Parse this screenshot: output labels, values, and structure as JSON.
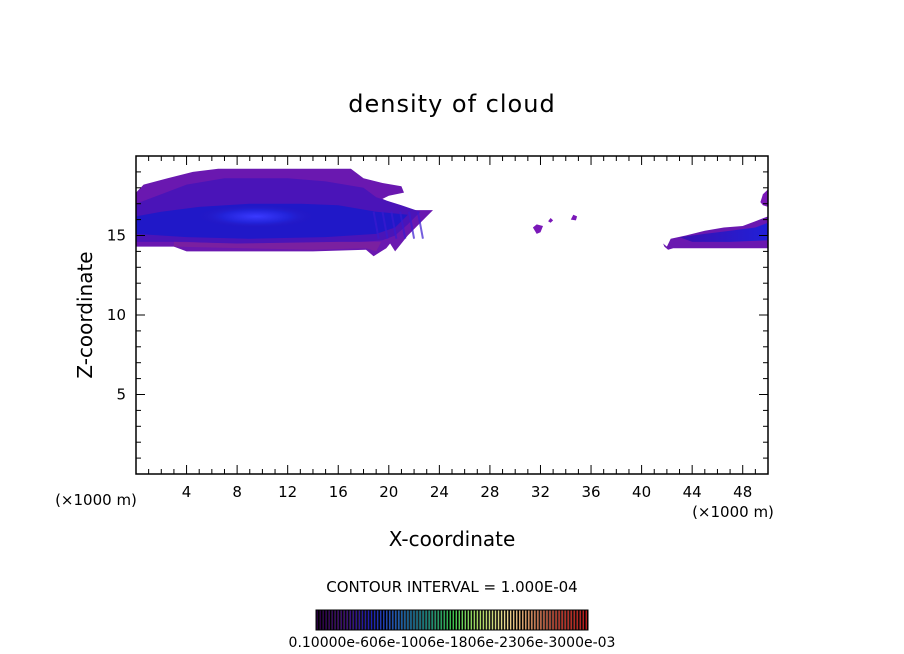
{
  "chart_data": {
    "type": "heatmap",
    "title": "density of cloud",
    "xlabel": "X-coordinate",
    "ylabel": "Z-coordinate",
    "x_unit_label": "(×1000 m)",
    "y_unit_label": "(×1000 m)",
    "xlim": [
      0,
      50
    ],
    "ylim": [
      0,
      20
    ],
    "x_ticks": [
      4,
      8,
      12,
      16,
      20,
      24,
      28,
      32,
      36,
      40,
      44,
      48
    ],
    "y_ticks": [
      5,
      10,
      15
    ],
    "contour_interval_label": "CONTOUR INTERVAL = 1.000E-04",
    "colorbar_labels": "0.10000e-606e-1006e-1806e-2306e-3000e-03",
    "colorbar_range": [
      0.0001,
      0.003
    ],
    "palette": [
      "#2a0040",
      "#3a0a70",
      "#1f1fb0",
      "#2a6fd0",
      "#28a0a0",
      "#3cc850",
      "#a8d860",
      "#e8d890",
      "#f0a070",
      "#e05040",
      "#c02020"
    ],
    "cloud_regions": [
      {
        "name": "left-anvil",
        "x_range": [
          0,
          23.5
        ],
        "z_range": [
          13.8,
          19.2
        ],
        "peak": 0.0006,
        "core": {
          "x": 9,
          "z": 16.2
        }
      },
      {
        "name": "small-patch-1",
        "x_range": [
          31.4,
          32.2
        ],
        "z_range": [
          15.2,
          15.7
        ],
        "peak": 0.0002
      },
      {
        "name": "small-patch-2",
        "x_range": [
          32.6,
          33.0
        ],
        "z_range": [
          15.8,
          16.1
        ],
        "peak": 0.0002
      },
      {
        "name": "small-patch-3",
        "x_range": [
          34.4,
          34.9
        ],
        "z_range": [
          15.9,
          16.3
        ],
        "peak": 0.0002
      },
      {
        "name": "right-layer",
        "x_range": [
          41.5,
          50
        ],
        "z_range": [
          14.2,
          17.8
        ],
        "peak": 0.0004
      }
    ]
  }
}
